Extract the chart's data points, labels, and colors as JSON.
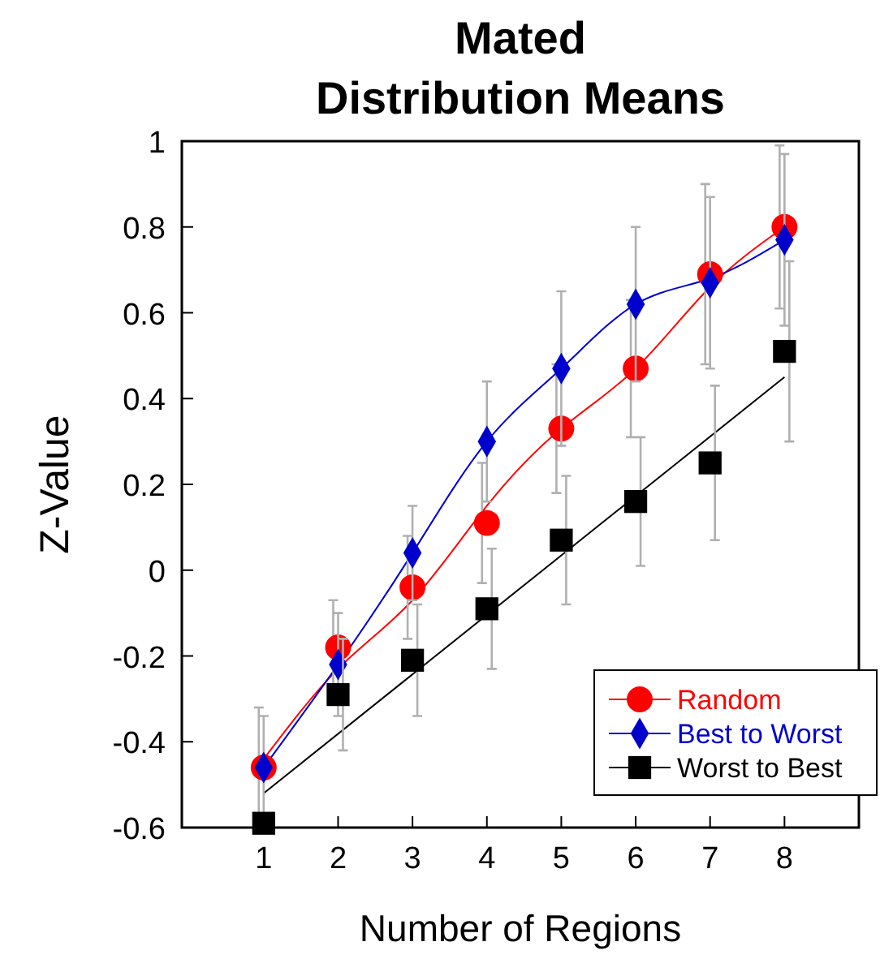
{
  "chart_data": {
    "type": "scatter",
    "title": "Mated\nDistribution Means",
    "xlabel": "Number of Regions",
    "ylabel": "Z-Value",
    "x": [
      1,
      2,
      3,
      4,
      5,
      6,
      7,
      8
    ],
    "xlim": [
      -0.1,
      9
    ],
    "xticks": [
      1,
      2,
      3,
      4,
      5,
      6,
      7,
      8
    ],
    "ylim": [
      -0.6,
      1
    ],
    "yticks": [
      {
        "value": -0.6,
        "label": "-0.6"
      },
      {
        "value": -0.4,
        "label": "-0.4"
      },
      {
        "value": -0.2,
        "label": "-0.2"
      },
      0,
      0.2,
      0.4,
      0.6,
      0.8,
      1
    ],
    "legend": "bottom right",
    "grid": false,
    "series": [
      {
        "name": "Random",
        "color": "#ff0000",
        "marker": "circle",
        "values": [
          -0.46,
          -0.18,
          -0.04,
          0.11,
          0.33,
          0.47,
          0.69,
          0.8
        ],
        "errors": [
          0.14,
          0.11,
          0.12,
          0.14,
          0.15,
          0.16,
          0.21,
          0.19
        ]
      },
      {
        "name": "Best to Worst",
        "color": "#0000cc",
        "marker": "diamond",
        "values": [
          -0.46,
          -0.22,
          0.04,
          0.3,
          0.47,
          0.62,
          0.67,
          0.77
        ],
        "errors": [
          0.12,
          0.12,
          0.11,
          0.14,
          0.18,
          0.18,
          0.2,
          0.2
        ]
      },
      {
        "name": "Worst to Best",
        "color": "#000000",
        "marker": "square",
        "values": [
          -0.59,
          -0.29,
          -0.21,
          -0.09,
          0.07,
          0.16,
          0.25,
          0.51
        ],
        "errors": [
          null,
          0.13,
          0.13,
          0.14,
          0.15,
          0.15,
          0.18,
          0.21
        ]
      },
      {
        "type": "line",
        "color": "#ff0000",
        "marker": "none",
        "x": [
          1,
          2,
          3,
          4,
          5,
          6,
          7,
          8
        ],
        "values": [
          -0.44,
          -0.23,
          -0.07,
          0.15,
          0.33,
          0.47,
          0.66,
          0.8
        ]
      },
      {
        "type": "line",
        "color": "#0000cc",
        "marker": "none",
        "x": [
          1,
          2,
          3,
          4,
          5,
          6,
          7,
          8
        ],
        "values": [
          -0.46,
          -0.22,
          0.04,
          0.3,
          0.47,
          0.62,
          0.68,
          0.77
        ]
      },
      {
        "type": "line",
        "color": "#000000",
        "marker": "none",
        "x": [
          1,
          8
        ],
        "values": [
          -0.52,
          0.45
        ]
      }
    ]
  }
}
